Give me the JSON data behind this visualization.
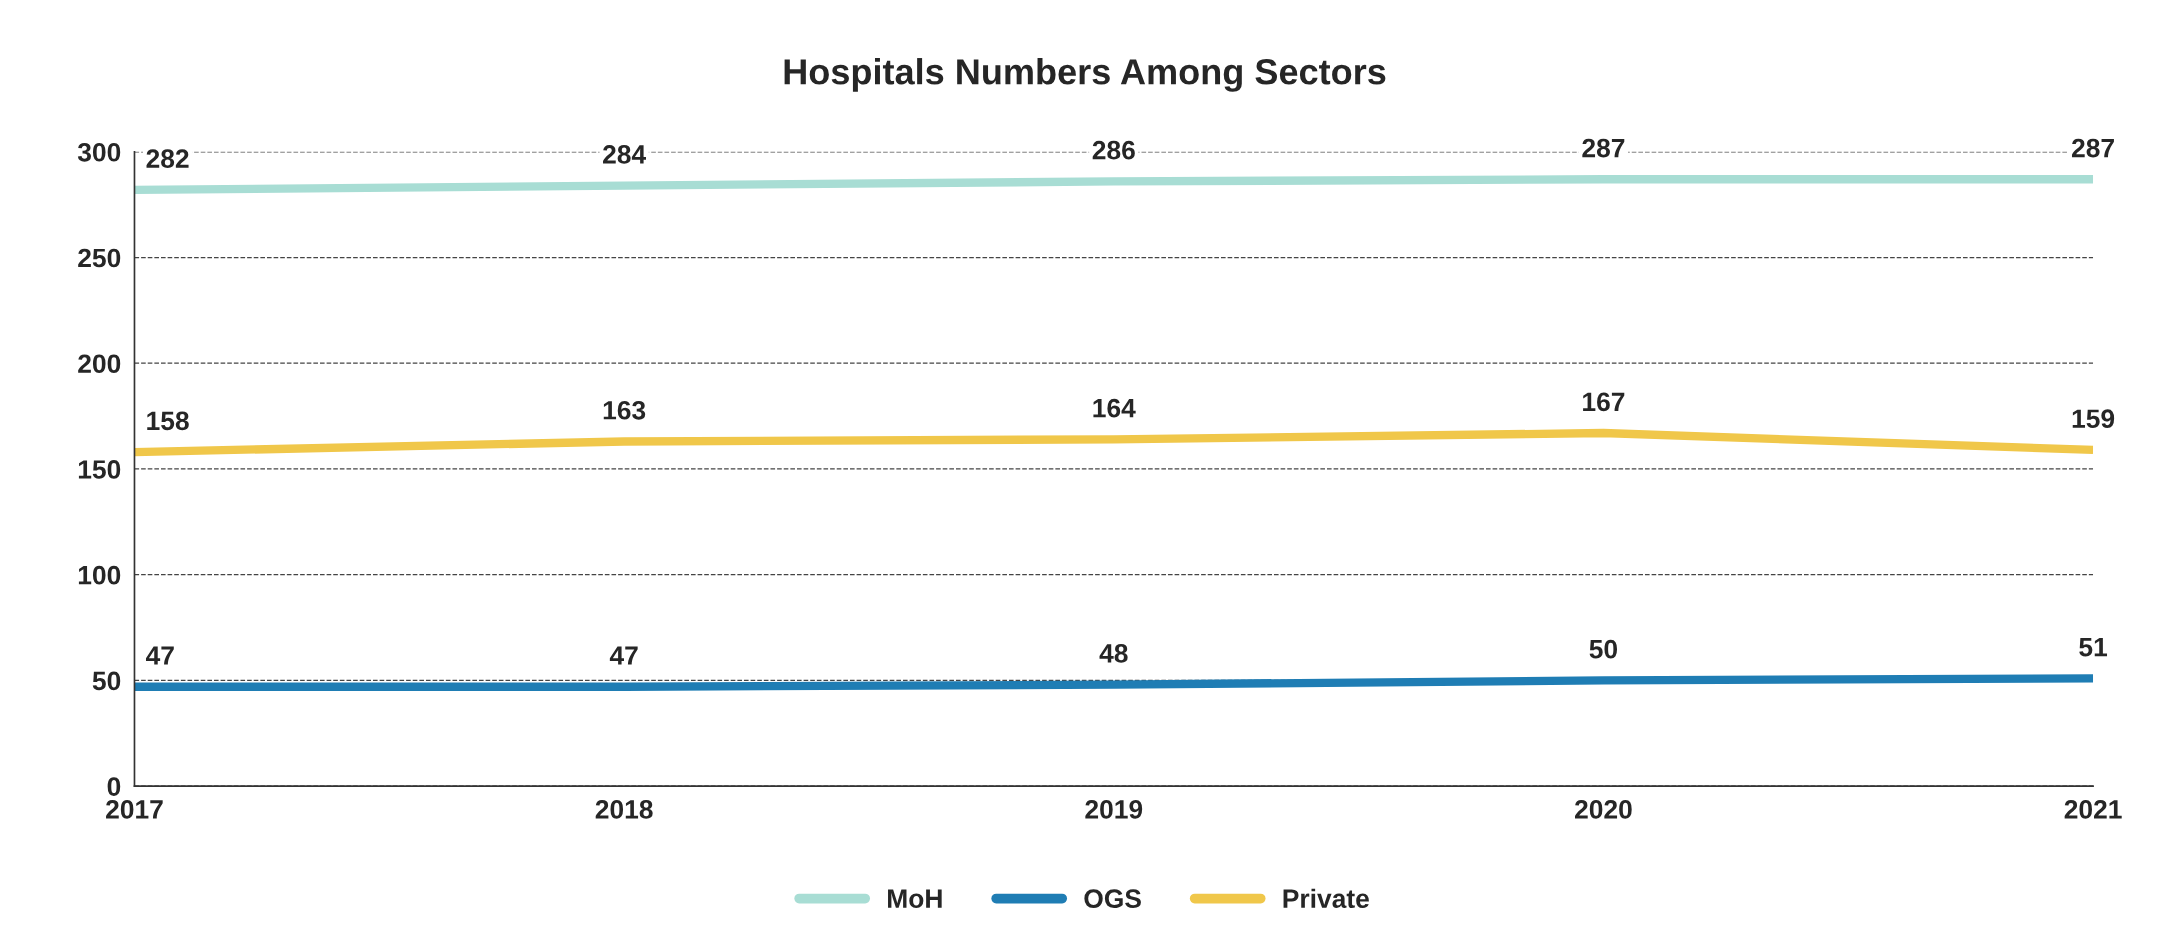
{
  "chart_data": {
    "type": "line",
    "title": "Hospitals Numbers Among Sectors",
    "x": [
      2017,
      2018,
      2019,
      2020,
      2021
    ],
    "series": [
      {
        "name": "MoH",
        "color": "#a8ddd4",
        "values": [
          282,
          284,
          286,
          287,
          287
        ]
      },
      {
        "name": "OGS",
        "color": "#1f7db4",
        "values": [
          47,
          47,
          48,
          50,
          51
        ]
      },
      {
        "name": "Private",
        "color": "#f0c74a",
        "values": [
          158,
          163,
          164,
          167,
          159
        ]
      }
    ],
    "xlim": [
      2017,
      2021
    ],
    "xticks": [
      2017,
      2018,
      2019,
      2020,
      2021
    ],
    "ylim": [
      0,
      300
    ],
    "yticks": [
      0,
      50,
      100,
      150,
      200,
      250,
      300
    ],
    "grid": "y",
    "legend": "bottom",
    "data_labels": true,
    "marker": "none",
    "line_style": "solid"
  }
}
